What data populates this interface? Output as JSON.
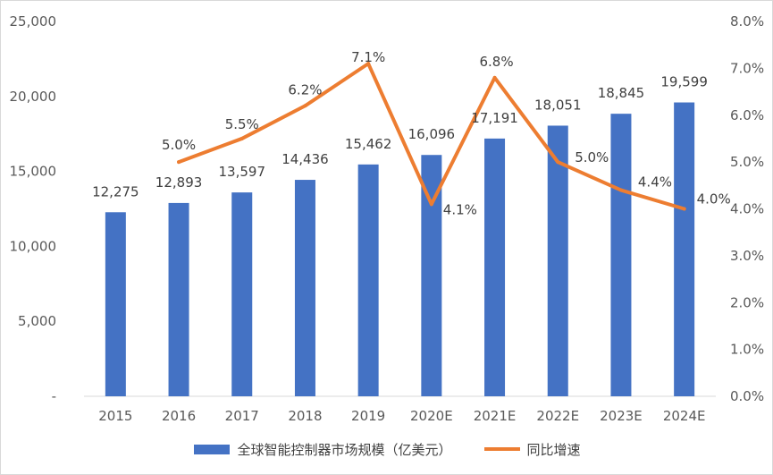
{
  "chart_data": {
    "type": "bar",
    "categories": [
      "2015",
      "2016",
      "2017",
      "2018",
      "2019",
      "2020E",
      "2021E",
      "2022E",
      "2023E",
      "2024E"
    ],
    "series": [
      {
        "name": "全球智能控制器市场规模（亿美元）",
        "type": "bar",
        "axis": "left",
        "values": [
          12275,
          12893,
          13597,
          14436,
          15462,
          16096,
          17191,
          18051,
          18845,
          19599
        ],
        "labels": [
          "12,275",
          "12,893",
          "13,597",
          "14,436",
          "15,462",
          "16,096",
          "17,191",
          "18,051",
          "18,845",
          "19,599"
        ],
        "color": "#4472c4"
      },
      {
        "name": "同比增速",
        "type": "line",
        "axis": "right",
        "values": [
          null,
          5.0,
          5.5,
          6.2,
          7.1,
          4.1,
          6.8,
          5.0,
          4.4,
          4.0
        ],
        "labels": [
          "",
          "5.0%",
          "5.5%",
          "6.2%",
          "7.1%",
          "4.1%",
          "6.8%",
          "5.0%",
          "4.4%",
          "4.0%"
        ],
        "color": "#ed7d31"
      }
    ],
    "y_left": {
      "ylim": [
        0,
        25000
      ],
      "ticks": [
        0,
        5000,
        10000,
        15000,
        20000,
        25000
      ],
      "tick_labels": [
        "-",
        "5,000",
        "10,000",
        "15,000",
        "20,000",
        "25,000"
      ]
    },
    "y_right": {
      "ylim": [
        0,
        8
      ],
      "ticks": [
        0,
        1,
        2,
        3,
        4,
        5,
        6,
        7,
        8
      ],
      "tick_labels": [
        "0.0%",
        "1.0%",
        "2.0%",
        "3.0%",
        "4.0%",
        "5.0%",
        "6.0%",
        "7.0%",
        "8.0%"
      ]
    },
    "grid": false,
    "legend": "bottom"
  },
  "legend": {
    "bar_label": "全球智能控制器市场规模（亿美元）",
    "line_label": "同比增速"
  }
}
